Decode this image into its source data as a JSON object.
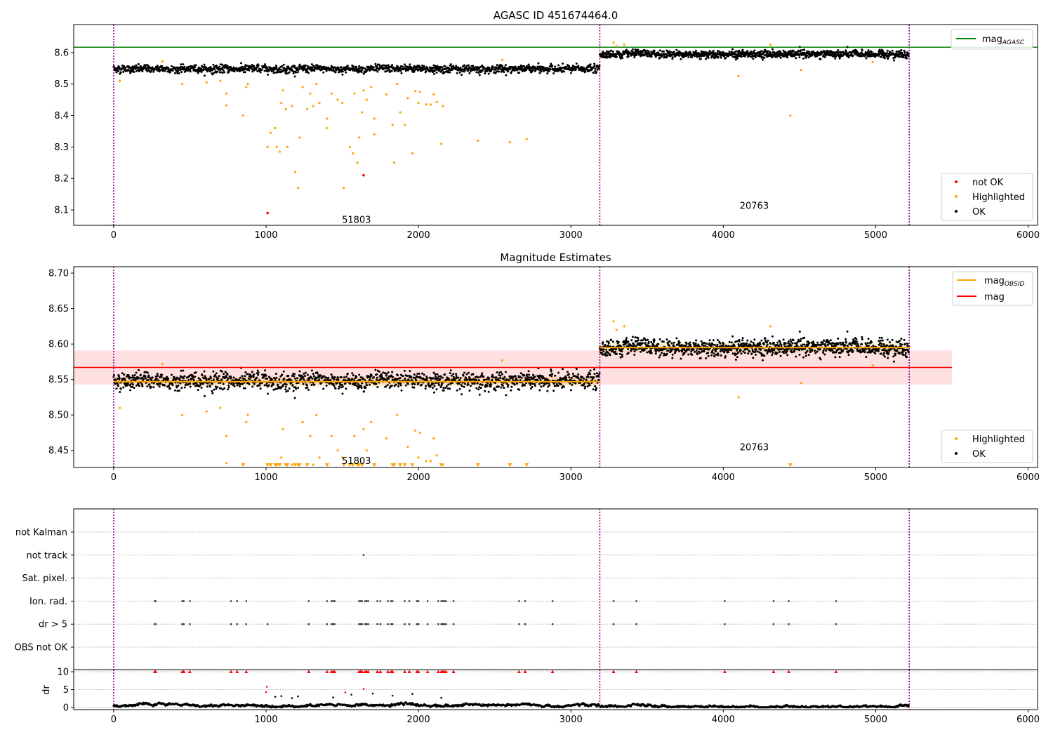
{
  "chart_data": [
    {
      "type": "scatter",
      "title": "AGASC ID 451674464.0",
      "xlim": [
        -262,
        6062
      ],
      "ylim": [
        8.051,
        8.689
      ],
      "xticks": [
        0,
        1000,
        2000,
        3000,
        4000,
        5000,
        6000
      ],
      "yticks": [
        8.1,
        8.2,
        8.3,
        8.4,
        8.5,
        8.6
      ],
      "ytick_labels": [
        "8.1",
        "8.2",
        "8.3",
        "8.4",
        "8.5",
        "8.6"
      ],
      "vlines": [
        0,
        3190,
        5220
      ],
      "hline": {
        "name": "mag_AGASC",
        "label_main": "mag",
        "label_sub": "AGASC",
        "y": 8.617,
        "color": "#008000"
      },
      "annotations": [
        {
          "text": "51803",
          "x": 1590,
          "y": 8.07
        },
        {
          "text": "20763",
          "x": 4200,
          "y": 8.115
        }
      ],
      "legend_top": "top-right",
      "legend_bottom": {
        "placement": "bottom-right",
        "entries": [
          "not OK",
          "Highlighted",
          "OK"
        ]
      }
    },
    {
      "type": "scatter",
      "title": "Magnitude Estimates",
      "xlim": [
        -262,
        6062
      ],
      "ylim": [
        8.426,
        8.709
      ],
      "xticks": [
        0,
        1000,
        2000,
        3000,
        4000,
        5000,
        6000
      ],
      "yticks": [
        8.45,
        8.5,
        8.55,
        8.6,
        8.65,
        8.7
      ],
      "ytick_labels": [
        "8.45",
        "8.50",
        "8.55",
        "8.60",
        "8.65",
        "8.70"
      ],
      "vlines": [
        0,
        3190,
        5220
      ],
      "mag_line": {
        "label": "mag",
        "y": 8.567,
        "band": [
          8.543,
          8.591
        ],
        "x_range": [
          -262,
          5500
        ],
        "color": "#ff0000"
      },
      "obsid_lines": {
        "label_main": "mag",
        "label_sub": "OBSID",
        "color": "#ffa500",
        "segments": [
          {
            "x0": 0,
            "x1": 3190,
            "y": 8.547
          },
          {
            "x0": 3190,
            "x1": 5220,
            "y": 8.595
          }
        ]
      },
      "annotations": [
        {
          "text": "51803",
          "x": 1590,
          "y": 8.436
        },
        {
          "text": "20763",
          "x": 4200,
          "y": 8.455
        }
      ],
      "legend_bottom": {
        "placement": "bottom-right",
        "entries": [
          "Highlighted",
          "OK"
        ]
      }
    },
    {
      "type": "scatter",
      "title": "",
      "categories": [
        "OBS not OK",
        "dr > 5",
        "Ion. rad.",
        "Sat. pixel.",
        "not track",
        "not Kalman"
      ],
      "flag_x": [
        270,
        275,
        450,
        460,
        500,
        770,
        810,
        870,
        1280,
        1400,
        1430,
        1440,
        1450,
        1610,
        1620,
        1630,
        1650,
        1660,
        1670,
        1730,
        1750,
        1800,
        1820,
        1830,
        1910,
        1940,
        1990,
        2000,
        2060,
        2130,
        2150,
        2160,
        2170,
        2180,
        2230,
        2660,
        2700,
        2880,
        3280,
        3430,
        4010,
        4330,
        4430,
        4740
      ],
      "dr_gt5_extra_x": [
        1010
      ],
      "not_track_x": [
        1640
      ]
    },
    {
      "type": "scatter",
      "ylabel": "dr",
      "xlim": [
        -262,
        6062
      ],
      "ylim": [
        -0.6,
        10.6
      ],
      "xticks": [
        0,
        1000,
        2000,
        3000,
        4000,
        5000,
        6000
      ],
      "yticks": [
        0,
        5,
        10
      ],
      "clipped_values": 10,
      "outliers": [
        [
          1000,
          4.3
        ],
        [
          1005,
          5.8
        ],
        [
          1060,
          3.0
        ],
        [
          1100,
          3.2
        ],
        [
          1170,
          2.6
        ],
        [
          1210,
          3.1
        ],
        [
          1440,
          2.8
        ],
        [
          1520,
          4.2
        ],
        [
          1560,
          3.6
        ],
        [
          1640,
          5.2
        ],
        [
          1700,
          3.9
        ],
        [
          1830,
          3.3
        ],
        [
          1960,
          3.8
        ],
        [
          2150,
          2.7
        ]
      ]
    }
  ],
  "series": {
    "ok_segments": [
      {
        "x0": 0,
        "x1": 3190,
        "mean": 8.548,
        "sd": 0.006,
        "n": 1400
      },
      {
        "x0": 3190,
        "x1": 5220,
        "mean": 8.595,
        "sd": 0.006,
        "n": 1100
      }
    ],
    "highlighted": [
      [
        40,
        8.51
      ],
      [
        450,
        8.5
      ],
      [
        610,
        8.505
      ],
      [
        700,
        8.51
      ],
      [
        740,
        8.47
      ],
      [
        740,
        8.432
      ],
      [
        850,
        8.4
      ],
      [
        870,
        8.49
      ],
      [
        880,
        8.5
      ],
      [
        1010,
        8.3
      ],
      [
        1030,
        8.345
      ],
      [
        1060,
        8.36
      ],
      [
        1070,
        8.3
      ],
      [
        1090,
        8.285
      ],
      [
        1100,
        8.44
      ],
      [
        1110,
        8.48
      ],
      [
        1130,
        8.42
      ],
      [
        1140,
        8.3
      ],
      [
        1170,
        8.43
      ],
      [
        1190,
        8.22
      ],
      [
        1210,
        8.17
      ],
      [
        1220,
        8.33
      ],
      [
        1240,
        8.49
      ],
      [
        1270,
        8.42
      ],
      [
        1290,
        8.47
      ],
      [
        1310,
        8.43
      ],
      [
        1330,
        8.5
      ],
      [
        1350,
        8.44
      ],
      [
        1400,
        8.39
      ],
      [
        1400,
        8.36
      ],
      [
        1430,
        8.47
      ],
      [
        1470,
        8.45
      ],
      [
        1500,
        8.44
      ],
      [
        1510,
        8.17
      ],
      [
        1550,
        8.3
      ],
      [
        1570,
        8.28
      ],
      [
        1580,
        8.47
      ],
      [
        1600,
        8.25
      ],
      [
        1610,
        8.33
      ],
      [
        1630,
        8.41
      ],
      [
        1640,
        8.48
      ],
      [
        1660,
        8.45
      ],
      [
        1690,
        8.49
      ],
      [
        1710,
        8.39
      ],
      [
        1710,
        8.34
      ],
      [
        1790,
        8.467
      ],
      [
        1830,
        8.37
      ],
      [
        1840,
        8.25
      ],
      [
        1860,
        8.5
      ],
      [
        1880,
        8.41
      ],
      [
        1910,
        8.37
      ],
      [
        1930,
        8.455
      ],
      [
        1960,
        8.28
      ],
      [
        1980,
        8.478
      ],
      [
        2000,
        8.44
      ],
      [
        2010,
        8.475
      ],
      [
        2050,
        8.435
      ],
      [
        2080,
        8.435
      ],
      [
        2100,
        8.467
      ],
      [
        2120,
        8.443
      ],
      [
        2150,
        8.31
      ],
      [
        2160,
        8.43
      ],
      [
        2390,
        8.32
      ],
      [
        2600,
        8.315
      ],
      [
        2710,
        8.325
      ],
      [
        4100,
        8.525
      ],
      [
        4440,
        8.4
      ],
      [
        4510,
        8.545
      ],
      [
        4310,
        8.625
      ],
      [
        3280,
        8.632
      ],
      [
        3300,
        8.62
      ],
      [
        3350,
        8.625
      ],
      [
        320,
        8.572
      ],
      [
        2550,
        8.577
      ],
      [
        4980,
        8.57
      ]
    ],
    "not_ok": [
      [
        1010,
        8.09
      ],
      [
        1640,
        8.21
      ]
    ],
    "labels": {
      "not_ok": "not OK",
      "highlighted": "Highlighted",
      "ok": "OK"
    },
    "colors": {
      "ok": "#000000",
      "highlighted": "#ffa500",
      "not_ok": "#ff0000",
      "vline": "#800080",
      "agasc": "#008000"
    }
  }
}
